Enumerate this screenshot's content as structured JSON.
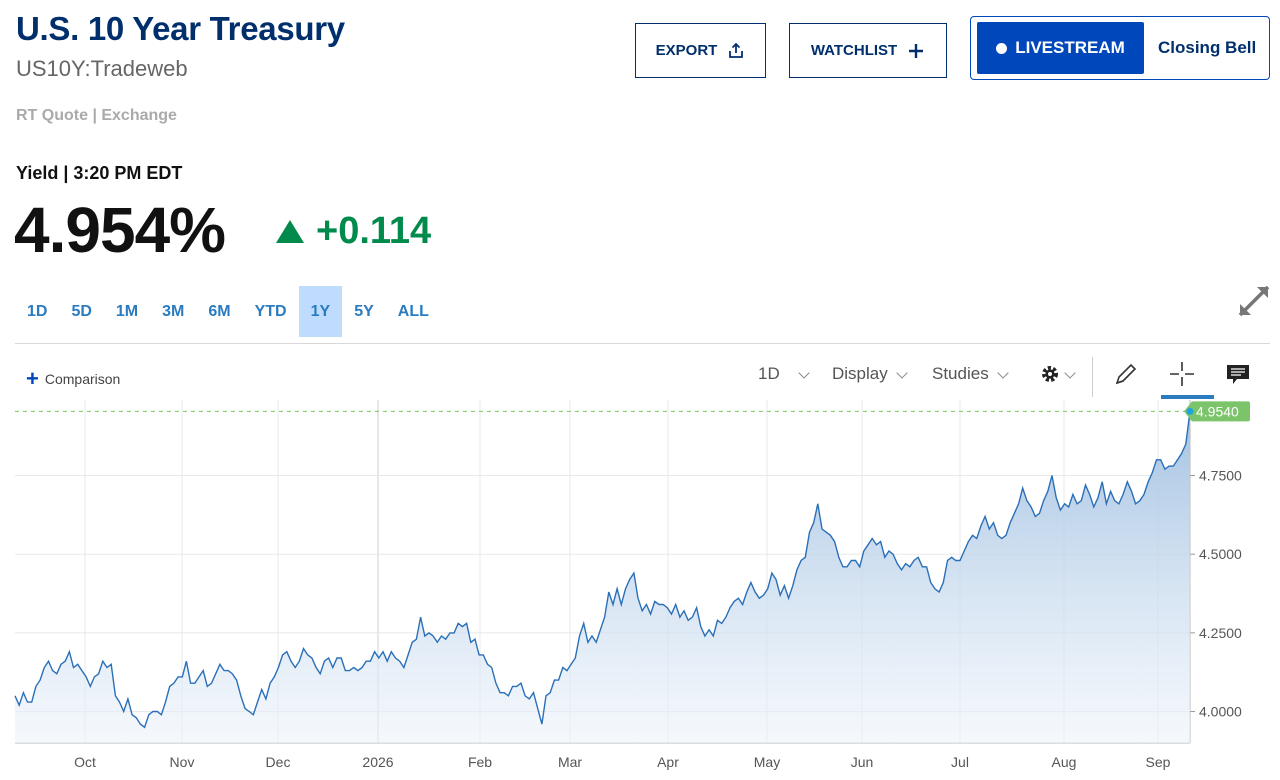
{
  "header": {
    "title": "U.S. 10 Year Treasury",
    "symbol": "US10Y:Tradeweb",
    "quote_source": "RT Quote | Exchange"
  },
  "actions": {
    "export_label": "EXPORT",
    "watchlist_label": "WATCHLIST",
    "livestream_label": "LIVESTREAM",
    "closing_bell_label": "Closing Bell"
  },
  "quote": {
    "label": "Yield | 3:20 PM EDT",
    "value": "4.954%",
    "change": "+0.114",
    "change_color": "#008a4b"
  },
  "ranges": [
    {
      "label": "1D",
      "active": false
    },
    {
      "label": "5D",
      "active": false
    },
    {
      "label": "1M",
      "active": false
    },
    {
      "label": "3M",
      "active": false
    },
    {
      "label": "6M",
      "active": false
    },
    {
      "label": "YTD",
      "active": false
    },
    {
      "label": "1Y",
      "active": true
    },
    {
      "label": "5Y",
      "active": false
    },
    {
      "label": "ALL",
      "active": false
    }
  ],
  "chart_toolbar": {
    "comparison_label": "Comparison",
    "interval_label": "1D",
    "display_label": "Display",
    "studies_label": "Studies",
    "icons": [
      "gear-icon",
      "pencil-icon",
      "crosshair-icon",
      "comment-icon"
    ]
  },
  "chart_data": {
    "type": "area",
    "x_labels": [
      "Oct",
      "Nov",
      "Dec",
      "2026",
      "Feb",
      "Mar",
      "Apr",
      "May",
      "Jun",
      "Jul",
      "Aug",
      "Sep"
    ],
    "y_ticks": [
      "4.7500",
      "4.5000",
      "4.2500",
      "4.0000"
    ],
    "ylim": [
      3.9,
      4.99
    ],
    "last_value_label": "4.9540",
    "line_color": "#2a6fb8",
    "grid": true,
    "series": [
      {
        "values": [
          4.05,
          4.02,
          4.06,
          4.03,
          4.03,
          4.08,
          4.1,
          4.14,
          4.16,
          4.13,
          4.12,
          4.15,
          4.16,
          4.19,
          4.14,
          4.15,
          4.13,
          4.11,
          4.08,
          4.11,
          4.12,
          4.16,
          4.14,
          4.15,
          4.05,
          4.03,
          4.0,
          4.04,
          3.99,
          3.98,
          3.96,
          3.95,
          3.99,
          4.0,
          4.0,
          3.99,
          4.03,
          4.08,
          4.09,
          4.11,
          4.11,
          4.16,
          4.09,
          4.09,
          4.11,
          4.13,
          4.08,
          4.09,
          4.12,
          4.15,
          4.13,
          4.13,
          4.12,
          4.1,
          4.05,
          4.01,
          4.0,
          3.99,
          4.03,
          4.07,
          4.04,
          4.09,
          4.11,
          4.14,
          4.18,
          4.19,
          4.16,
          4.14,
          4.16,
          4.2,
          4.18,
          4.17,
          4.14,
          4.12,
          4.16,
          4.17,
          4.14,
          4.17,
          4.17,
          4.13,
          4.13,
          4.14,
          4.13,
          4.14,
          4.16,
          4.16,
          4.19,
          4.17,
          4.19,
          4.16,
          4.19,
          4.17,
          4.16,
          4.14,
          4.18,
          4.22,
          4.23,
          4.3,
          4.24,
          4.25,
          4.24,
          4.22,
          4.24,
          4.23,
          4.25,
          4.25,
          4.28,
          4.27,
          4.28,
          4.22,
          4.23,
          4.18,
          4.18,
          4.15,
          4.14,
          4.09,
          4.06,
          4.06,
          4.05,
          4.08,
          4.08,
          4.09,
          4.05,
          4.04,
          4.06,
          4.01,
          3.96,
          4.05,
          4.06,
          4.1,
          4.1,
          4.14,
          4.13,
          4.15,
          4.17,
          4.24,
          4.28,
          4.22,
          4.24,
          4.22,
          4.26,
          4.3,
          4.38,
          4.34,
          4.39,
          4.34,
          4.39,
          4.42,
          4.44,
          4.36,
          4.32,
          4.34,
          4.31,
          4.35,
          4.34,
          4.34,
          4.33,
          4.31,
          4.34,
          4.3,
          4.32,
          4.29,
          4.3,
          4.33,
          4.27,
          4.24,
          4.26,
          4.24,
          4.29,
          4.28,
          4.3,
          4.33,
          4.35,
          4.36,
          4.34,
          4.38,
          4.41,
          4.38,
          4.36,
          4.37,
          4.39,
          4.44,
          4.42,
          4.37,
          4.4,
          4.36,
          4.4,
          4.45,
          4.48,
          4.49,
          4.57,
          4.6,
          4.66,
          4.58,
          4.57,
          4.56,
          4.54,
          4.49,
          4.46,
          4.46,
          4.48,
          4.48,
          4.46,
          4.51,
          4.53,
          4.55,
          4.53,
          4.54,
          4.49,
          4.51,
          4.5,
          4.47,
          4.45,
          4.47,
          4.46,
          4.48,
          4.49,
          4.46,
          4.46,
          4.41,
          4.39,
          4.38,
          4.41,
          4.48,
          4.49,
          4.48,
          4.48,
          4.51,
          4.54,
          4.56,
          4.55,
          4.59,
          4.62,
          4.58,
          4.6,
          4.56,
          4.55,
          4.56,
          4.6,
          4.63,
          4.66,
          4.71,
          4.67,
          4.65,
          4.62,
          4.63,
          4.67,
          4.7,
          4.75,
          4.68,
          4.64,
          4.66,
          4.65,
          4.69,
          4.66,
          4.67,
          4.72,
          4.69,
          4.65,
          4.68,
          4.73,
          4.66,
          4.7,
          4.67,
          4.66,
          4.69,
          4.73,
          4.7,
          4.66,
          4.67,
          4.69,
          4.73,
          4.76,
          4.8,
          4.8,
          4.77,
          4.78,
          4.78,
          4.8,
          4.82,
          4.85,
          4.954
        ]
      }
    ]
  }
}
